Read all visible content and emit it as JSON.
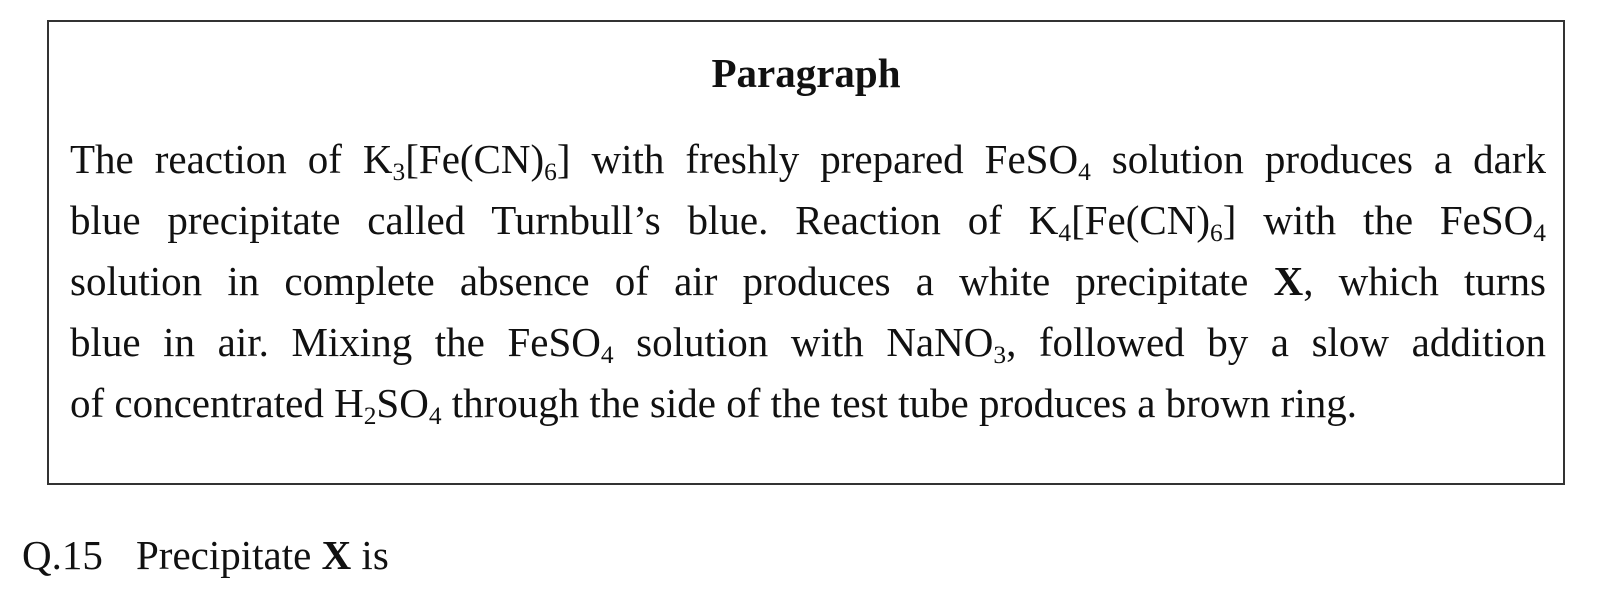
{
  "paragraph": {
    "title": "Paragraph",
    "lines": [
      [
        "The reaction of K",
        "3",
        "[Fe(CN)",
        "6",
        "] with freshly prepared FeSO",
        "4",
        " solution produces a dark"
      ],
      [
        "blue precipitate called Turnbull’s blue. Reaction of K",
        "4",
        "[Fe(CN)",
        "6",
        "] with the FeSO",
        "4"
      ],
      [
        "solution in complete absence of air produces a white precipitate ",
        "X",
        ", which turns"
      ],
      [
        "blue in air. Mixing the FeSO",
        "4",
        " solution with NaNO",
        "3",
        ", followed by a slow addition"
      ],
      [
        "of concentrated H",
        "2",
        "SO",
        "4",
        " through the side of the test tube produces a brown ring."
      ]
    ]
  },
  "question": {
    "number": "Q.15",
    "text_before": "Precipitate ",
    "bold_term": "X",
    "text_after": " is"
  }
}
